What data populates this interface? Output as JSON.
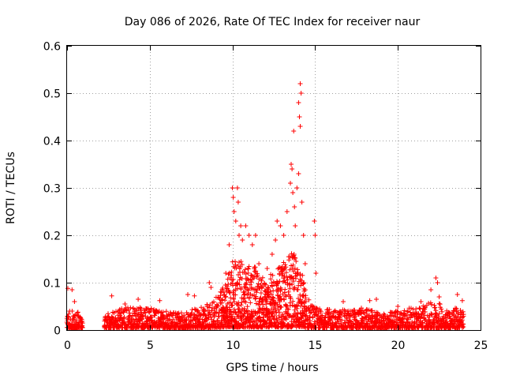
{
  "chart_data": {
    "type": "scatter",
    "title": "Day 086 of 2026, Rate Of TEC Index for receiver naur",
    "xlabel": "GPS time / hours",
    "ylabel": "ROTI / TECUs",
    "xlim": [
      0,
      25
    ],
    "ylim": [
      0,
      0.6
    ],
    "xticks": [
      0,
      5,
      10,
      15,
      20,
      25
    ],
    "yticks": [
      0,
      0.1,
      0.2,
      0.3,
      0.4,
      0.5,
      0.6
    ],
    "xtick_labels": [
      "0",
      "5",
      "10",
      "15",
      "20",
      "25"
    ],
    "ytick_labels": [
      "0",
      "0.1",
      "0.2",
      "0.3",
      "0.4",
      "0.5",
      "0.6"
    ],
    "grid": true,
    "marker": "+",
    "color": "#ff0000",
    "density": [
      [
        0.0,
        0.012,
        0.035
      ],
      [
        0.25,
        0.01,
        0.045
      ],
      [
        0.5,
        0.01,
        0.04
      ],
      [
        0.9,
        0.008,
        0.03
      ],
      [
        2.3,
        0.008,
        0.03
      ],
      [
        3.0,
        0.01,
        0.045
      ],
      [
        4.0,
        0.01,
        0.045
      ],
      [
        5.0,
        0.01,
        0.045
      ],
      [
        6.0,
        0.01,
        0.04
      ],
      [
        7.0,
        0.008,
        0.035
      ],
      [
        8.0,
        0.01,
        0.045
      ],
      [
        9.0,
        0.015,
        0.07
      ],
      [
        9.5,
        0.02,
        0.09
      ],
      [
        10.0,
        0.02,
        0.15
      ],
      [
        10.5,
        0.02,
        0.14
      ],
      [
        11.0,
        0.02,
        0.15
      ],
      [
        11.5,
        0.02,
        0.12
      ],
      [
        12.0,
        0.02,
        0.1
      ],
      [
        12.5,
        0.02,
        0.12
      ],
      [
        13.0,
        0.02,
        0.13
      ],
      [
        13.5,
        0.02,
        0.16
      ],
      [
        14.0,
        0.02,
        0.15
      ],
      [
        14.5,
        0.015,
        0.07
      ],
      [
        15.0,
        0.01,
        0.045
      ],
      [
        16.0,
        0.01,
        0.04
      ],
      [
        17.0,
        0.01,
        0.04
      ],
      [
        18.0,
        0.01,
        0.045
      ],
      [
        19.0,
        0.01,
        0.03
      ],
      [
        20.0,
        0.01,
        0.04
      ],
      [
        21.0,
        0.01,
        0.045
      ],
      [
        22.0,
        0.01,
        0.055
      ],
      [
        22.5,
        0.01,
        0.055
      ],
      [
        23.0,
        0.01,
        0.04
      ],
      [
        23.5,
        0.01,
        0.045
      ],
      [
        24.0,
        0.01,
        0.04
      ]
    ],
    "gaps": [
      [
        0.95,
        2.25
      ]
    ],
    "outliers": [
      [
        0.05,
        0.088
      ],
      [
        0.3,
        0.085
      ],
      [
        0.45,
        0.06
      ],
      [
        2.7,
        0.072
      ],
      [
        3.5,
        0.055
      ],
      [
        4.3,
        0.065
      ],
      [
        5.6,
        0.062
      ],
      [
        7.3,
        0.075
      ],
      [
        7.7,
        0.072
      ],
      [
        8.6,
        0.1
      ],
      [
        8.7,
        0.09
      ],
      [
        9.6,
        0.12
      ],
      [
        9.8,
        0.18
      ],
      [
        10.0,
        0.3
      ],
      [
        10.05,
        0.28
      ],
      [
        10.1,
        0.25
      ],
      [
        10.2,
        0.23
      ],
      [
        10.3,
        0.3
      ],
      [
        10.35,
        0.27
      ],
      [
        10.4,
        0.2
      ],
      [
        10.5,
        0.22
      ],
      [
        10.6,
        0.19
      ],
      [
        10.8,
        0.22
      ],
      [
        11.0,
        0.2
      ],
      [
        11.2,
        0.18
      ],
      [
        11.4,
        0.2
      ],
      [
        11.6,
        0.14
      ],
      [
        12.1,
        0.13
      ],
      [
        12.4,
        0.16
      ],
      [
        12.6,
        0.19
      ],
      [
        12.7,
        0.23
      ],
      [
        12.9,
        0.22
      ],
      [
        13.1,
        0.2
      ],
      [
        13.3,
        0.25
      ],
      [
        13.5,
        0.31
      ],
      [
        13.55,
        0.35
      ],
      [
        13.6,
        0.34
      ],
      [
        13.65,
        0.29
      ],
      [
        13.7,
        0.42
      ],
      [
        13.75,
        0.26
      ],
      [
        13.8,
        0.22
      ],
      [
        13.9,
        0.3
      ],
      [
        14.0,
        0.33
      ],
      [
        14.05,
        0.45
      ],
      [
        14.1,
        0.52
      ],
      [
        14.15,
        0.5
      ],
      [
        14.0,
        0.48
      ],
      [
        14.1,
        0.43
      ],
      [
        14.2,
        0.27
      ],
      [
        14.3,
        0.2
      ],
      [
        14.4,
        0.14
      ],
      [
        14.95,
        0.23
      ],
      [
        15.0,
        0.2
      ],
      [
        15.05,
        0.12
      ],
      [
        16.7,
        0.06
      ],
      [
        18.3,
        0.062
      ],
      [
        18.7,
        0.065
      ],
      [
        20.0,
        0.05
      ],
      [
        21.4,
        0.06
      ],
      [
        22.0,
        0.085
      ],
      [
        22.3,
        0.11
      ],
      [
        22.4,
        0.1
      ],
      [
        22.5,
        0.07
      ],
      [
        23.6,
        0.075
      ],
      [
        23.9,
        0.062
      ]
    ]
  }
}
